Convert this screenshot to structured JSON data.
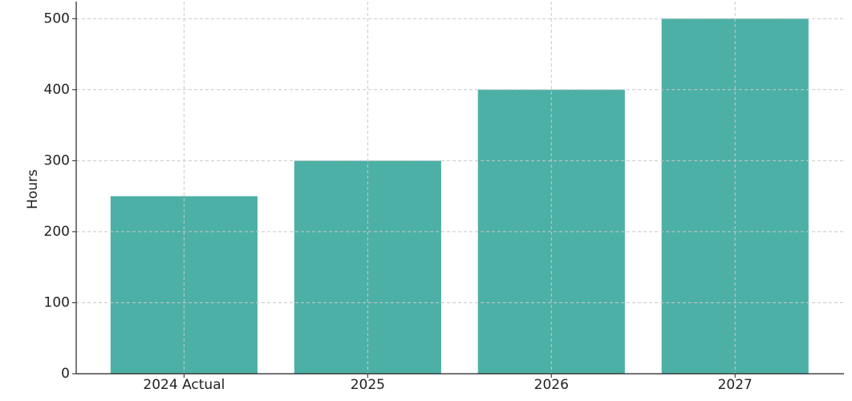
{
  "chart_data": {
    "type": "bar",
    "y_label": "Hours",
    "categories": [
      "2024 Actual",
      "2025",
      "2026",
      "2027"
    ],
    "values": [
      250,
      300,
      400,
      500
    ],
    "color": "#4db0a6",
    "ylim": [
      0,
      524
    ],
    "yticks": [
      0,
      100,
      200,
      300,
      400,
      500
    ],
    "grid": true
  }
}
